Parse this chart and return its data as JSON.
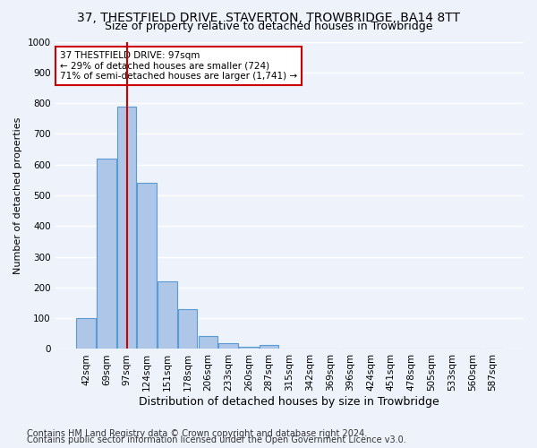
{
  "title1": "37, THESTFIELD DRIVE, STAVERTON, TROWBRIDGE, BA14 8TT",
  "title2": "Size of property relative to detached houses in Trowbridge",
  "xlabel": "Distribution of detached houses by size in Trowbridge",
  "ylabel": "Number of detached properties",
  "categories": [
    "42sqm",
    "69sqm",
    "97sqm",
    "124sqm",
    "151sqm",
    "178sqm",
    "206sqm",
    "233sqm",
    "260sqm",
    "287sqm",
    "315sqm",
    "342sqm",
    "369sqm",
    "396sqm",
    "424sqm",
    "451sqm",
    "478sqm",
    "505sqm",
    "533sqm",
    "560sqm",
    "587sqm"
  ],
  "values": [
    100,
    620,
    790,
    540,
    220,
    130,
    42,
    18,
    8,
    12,
    0,
    0,
    0,
    0,
    0,
    0,
    0,
    0,
    0,
    0,
    0
  ],
  "bar_color": "#aec6e8",
  "bar_edge_color": "#5b9bd5",
  "vline_x_idx": 2,
  "vline_color": "#cc0000",
  "annotation_line1": "37 THESTFIELD DRIVE: 97sqm",
  "annotation_line2": "← 29% of detached houses are smaller (724)",
  "annotation_line3": "71% of semi-detached houses are larger (1,741) →",
  "annotation_box_facecolor": "#ffffff",
  "annotation_box_edgecolor": "#cc0000",
  "ylim": [
    0,
    1000
  ],
  "yticks": [
    0,
    100,
    200,
    300,
    400,
    500,
    600,
    700,
    800,
    900,
    1000
  ],
  "footer1": "Contains HM Land Registry data © Crown copyright and database right 2024.",
  "footer2": "Contains public sector information licensed under the Open Government Licence v3.0.",
  "background_color": "#eef2fa",
  "grid_color": "#ffffff",
  "title1_fontsize": 10,
  "title2_fontsize": 9,
  "xlabel_fontsize": 9,
  "ylabel_fontsize": 8,
  "tick_fontsize": 7.5,
  "annot_fontsize": 7.5,
  "footer_fontsize": 7
}
